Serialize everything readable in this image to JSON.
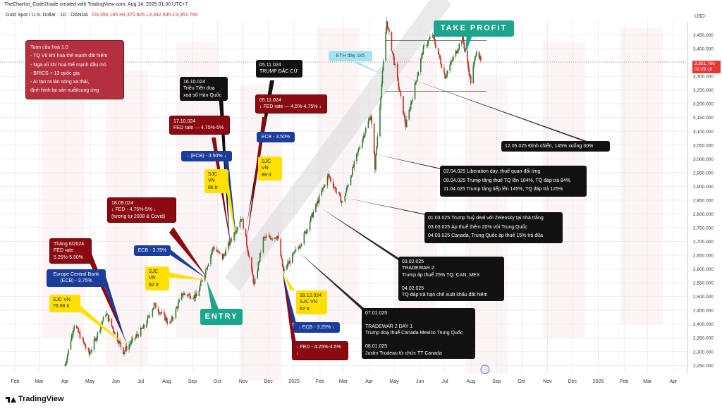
{
  "header": {
    "author_line": "TheChartist_Code2trade created with TradingView.com, Aug 14, 2025 01:30 UTC+7",
    "symbol": "Gold Spot / U.S. Dollar · 1D · OANDA",
    "ohlc": "O3,350.165  H3,370.825  L3,342.635  C3,351.760",
    "currency": "USD"
  },
  "price_tag": {
    "price": "3,351.760",
    "countdown": "02:29:10"
  },
  "footer": {
    "brand": "TradingView"
  },
  "summary_box": {
    "lines": [
      "Toàn cầu hoá 1.0",
      "-  TQ Vũ khí hoá thế mạnh đất hiếm",
      "-  Nga vũ khí hoá thế mạnh dầu mỏ",
      "-  BRICS + 13 quốc gia",
      "-  AI tạo ra làn sóng xa thải,",
      "định hình lại sản xuất/cung ứng"
    ]
  },
  "annotations": {
    "take_profit": "TAKE PROFIT",
    "entry": "ENTRY",
    "eth": "ETH đáy 1k5",
    "trump": "05.11.024\nTRUMP ĐẮC CỬ",
    "north_korea": "16.10.024\nTriều Tiên doạ\nxoá sổ Hàn Quốc",
    "fed_nov": "05.11.024\n↓ FED rate — 4.5%-4.75% ↓",
    "fed_oct": "17.10.024\nFED rate — 4.75%-5%",
    "ecb_350_oct": "↓ (ECB) - 3.50% ↓",
    "ecb_350_nov": "ECB - 3.50%",
    "sjc_86": "SJC VN\n86 tr",
    "sjc_89": "SJC VN\n89 tr",
    "fed_sep": "18.09.024\n↓ FED -  4.75%-5% ↓\n(tương tự 2008 & Covid)",
    "ecb_375_sep": "ECB - 3.75%",
    "sjc_82": "SJC VN\n82 tr",
    "fed_june": "Tháng 6/2024\nFED rate\n5.25%-5.50%",
    "ecb_june": "Europe Central Bank\n(ECB) - 3.75%",
    "sjc_7698": "SJC VN\n76.98 tr",
    "sjc_dec": "18.12.024\nSJC VN\n82 tr",
    "ecb_325": "↓ ECB - 3.25% ↓",
    "fed_dec": "↓ FED - 4.25%-4.5% ↓",
    "ceasefire": "12.05.025 Đình chiến, 145% xuống 30%",
    "liberation": "02.04.025 Liberation day, thuế quan đối ứng\n09.04.025 Trump tăng thuế TQ lên 104%, TQ đáp trả 84%\n11.04.025 Trump tăng tiếp lên 145%, TQ đáp trả 125%",
    "zelensky": "01.03.025 Trump huỷ deal với Zelensky tại nhà trắng\n03.03.025 Áp thuế thêm 20% với Trung Quốc\n04.03.025 Canada, Trung Quốc áp thuế 15% trả đũa",
    "tradewar2": "03.02.025\nTRADEWAR 2\nTrump áp thuế 25% TQ, CAN, MEX\n\n04.02.025\nTQ đáp trả hạn chế xuất khẩu đất hiếm",
    "tradewar2_day1": "07.01.025\n\nTRADEWAR 2 DAY 1\nTrump doạ thuế Canada Mexico Trung Quốc\n\n08.01.025\nJustin Trudeau từ chức TT Canada"
  },
  "chart_data": {
    "type": "candlestick",
    "title": "Gold Spot / U.S. Dollar · 1D · OANDA",
    "x_ticks": [
      "Feb",
      "Mar",
      "Apr",
      "May",
      "Jun",
      "Jul",
      "Aug",
      "Sep",
      "Oct",
      "Nov",
      "Dec",
      "2025",
      "Feb",
      "Mar",
      "Apr",
      "May",
      "Jun",
      "Jul",
      "Aug",
      "Sep",
      "Oct",
      "Nov",
      "Dec",
      "2026",
      "Feb",
      "Mar",
      "Apr"
    ],
    "y_ticks": [
      "3,450.000",
      "3,400.000",
      "3,350.000",
      "3,300.000",
      "3,250.000",
      "3,200.000",
      "3,150.000",
      "3,100.000",
      "3,050.000",
      "3,000.000",
      "2,950.000",
      "2,900.000",
      "2,850.000",
      "2,800.000",
      "2,750.000",
      "2,700.000",
      "2,650.000",
      "2,600.000",
      "2,550.000",
      "2,500.000",
      "2,450.000",
      "2,400.000",
      "2,350.000",
      "2,300.000",
      "2,250.000"
    ],
    "ylim": [
      2220,
      3500
    ],
    "last_close": 3351.76,
    "price_path": [
      [
        "2024-04-01",
        2250
      ],
      [
        "2024-04-12",
        2400
      ],
      [
        "2024-04-30",
        2290
      ],
      [
        "2024-05-20",
        2440
      ],
      [
        "2024-06-10",
        2300
      ],
      [
        "2024-07-05",
        2390
      ],
      [
        "2024-07-17",
        2470
      ],
      [
        "2024-08-05",
        2400
      ],
      [
        "2024-08-20",
        2510
      ],
      [
        "2024-09-06",
        2500
      ],
      [
        "2024-09-26",
        2680
      ],
      [
        "2024-10-07",
        2640
      ],
      [
        "2024-10-30",
        2790
      ],
      [
        "2024-11-14",
        2540
      ],
      [
        "2024-11-25",
        2710
      ],
      [
        "2024-12-12",
        2720
      ],
      [
        "2024-12-19",
        2590
      ],
      [
        "2025-01-10",
        2700
      ],
      [
        "2025-02-11",
        2940
      ],
      [
        "2025-02-28",
        2840
      ],
      [
        "2025-03-20",
        3040
      ],
      [
        "2025-04-03",
        3160
      ],
      [
        "2025-04-08",
        2970
      ],
      [
        "2025-04-22",
        3500
      ],
      [
        "2025-05-15",
        3120
      ],
      [
        "2025-06-05",
        3400
      ],
      [
        "2025-06-16",
        3450
      ],
      [
        "2025-07-01",
        3300
      ],
      [
        "2025-07-22",
        3440
      ],
      [
        "2025-08-01",
        3280
      ],
      [
        "2025-08-08",
        3400
      ],
      [
        "2025-08-13",
        3351.76
      ]
    ],
    "levels": [
      {
        "name": "take-profit-resistance",
        "value": 3430
      },
      {
        "name": "range-support",
        "value": 3245
      }
    ],
    "grid": true
  }
}
